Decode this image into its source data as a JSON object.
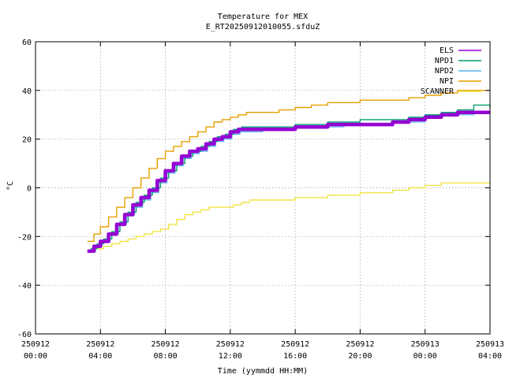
{
  "chart_data": {
    "type": "line",
    "title": "Temperature for MEX",
    "subtitle": "E_RT20250912010055.sfduZ",
    "xlabel": "Time (yymmdd HH:MM)",
    "ylabel": "°C",
    "xlim": [
      "250912 00:00",
      "250913 04:00"
    ],
    "ylim": [
      -60,
      60
    ],
    "yticks": [
      -60,
      -40,
      -20,
      0,
      20,
      40,
      60
    ],
    "xticks": [
      {
        "hours": 0,
        "date": "250912",
        "time": "00:00"
      },
      {
        "hours": 4,
        "date": "250912",
        "time": "04:00"
      },
      {
        "hours": 8,
        "date": "250912",
        "time": "08:00"
      },
      {
        "hours": 12,
        "date": "250912",
        "time": "12:00"
      },
      {
        "hours": 16,
        "date": "250912",
        "time": "16:00"
      },
      {
        "hours": 20,
        "date": "250912",
        "time": "20:00"
      },
      {
        "hours": 24,
        "date": "250913",
        "time": "00:00"
      },
      {
        "hours": 28,
        "date": "250913",
        "time": "04:00"
      }
    ],
    "grid": true,
    "legend_position": "top-right",
    "series": [
      {
        "name": "ELS",
        "color": "#9400d3",
        "x": [
          3.2,
          3.6,
          4.0,
          4.5,
          5.0,
          5.5,
          6.0,
          6.5,
          7.0,
          7.5,
          8.0,
          8.5,
          9.0,
          9.5,
          10.0,
          10.5,
          11.0,
          11.5,
          12.0,
          12.5,
          13.0,
          14.0,
          15.0,
          16.0,
          17.0,
          18.0,
          19.0,
          20.0,
          21.0,
          22.0,
          23.0,
          24.0,
          25.0,
          26.0,
          27.0,
          28.0
        ],
        "y": [
          -26,
          -24,
          -22,
          -19,
          -15,
          -11,
          -7,
          -4,
          -1,
          3,
          7,
          10,
          13,
          15,
          16,
          18,
          20,
          21,
          23,
          24,
          24,
          24,
          24,
          25,
          25,
          26,
          26,
          26,
          26,
          27,
          28,
          29,
          30,
          31,
          31,
          31
        ]
      },
      {
        "name": "NPD1",
        "color": "#009e73",
        "x": [
          3.4,
          3.8,
          4.2,
          4.7,
          5.2,
          5.7,
          6.2,
          6.7,
          7.2,
          7.7,
          8.2,
          8.7,
          9.2,
          9.7,
          10.2,
          10.7,
          11.2,
          11.7,
          12.2,
          12.7,
          13.2,
          14.0,
          15.0,
          16.0,
          17.0,
          18.0,
          19.0,
          20.0,
          21.0,
          22.0,
          23.0,
          24.0,
          25.0,
          26.0,
          27.0,
          28.0
        ],
        "y": [
          -25,
          -23,
          -21,
          -18,
          -14,
          -10,
          -6,
          -3,
          0,
          4,
          7,
          10,
          13,
          15,
          17,
          19,
          21,
          22,
          24,
          25,
          25,
          25,
          25,
          26,
          26,
          27,
          27,
          28,
          28,
          28,
          29,
          30,
          31,
          32,
          34,
          33
        ]
      },
      {
        "name": "NPD2",
        "color": "#56b4e9",
        "x": [
          3.3,
          3.7,
          4.1,
          4.6,
          5.1,
          5.6,
          6.1,
          6.6,
          7.1,
          7.6,
          8.1,
          8.6,
          9.1,
          9.6,
          10.1,
          10.6,
          11.1,
          11.6,
          12.1,
          12.6,
          13.1,
          14.0,
          15.0,
          16.0,
          17.0,
          18.0,
          19.0,
          20.0,
          21.0,
          22.0,
          23.0,
          24.0,
          25.0,
          26.0,
          27.0,
          28.0
        ],
        "y": [
          -26,
          -24,
          -22,
          -19,
          -15,
          -11,
          -8,
          -5,
          -2,
          2,
          6,
          9,
          12,
          14,
          15,
          17,
          19,
          20,
          22,
          23,
          23,
          24,
          24,
          25,
          25,
          25,
          26,
          26,
          26,
          27,
          27,
          29,
          30,
          30,
          31,
          31
        ]
      },
      {
        "name": "NPI",
        "color": "#e69f00",
        "x": [
          3.2,
          3.6,
          4.0,
          4.5,
          5.0,
          5.5,
          6.0,
          6.5,
          7.0,
          7.5,
          8.0,
          8.5,
          9.0,
          9.5,
          10.0,
          10.5,
          11.0,
          11.5,
          12.0,
          12.5,
          13.0,
          14.0,
          15.0,
          16.0,
          17.0,
          18.0,
          19.0,
          20.0,
          21.0,
          22.0,
          23.0,
          24.0,
          25.0,
          26.0,
          27.0,
          28.0
        ],
        "y": [
          -22,
          -19,
          -16,
          -12,
          -8,
          -4,
          0,
          4,
          8,
          12,
          15,
          17,
          19,
          21,
          23,
          25,
          27,
          28,
          29,
          30,
          31,
          31,
          32,
          33,
          34,
          35,
          35,
          36,
          36,
          36,
          37,
          38,
          39,
          40,
          40,
          40
        ]
      },
      {
        "name": "SCANNER",
        "color": "#f0e442",
        "x": [
          3.2,
          3.7,
          4.2,
          4.7,
          5.2,
          5.7,
          6.2,
          6.7,
          7.2,
          7.7,
          8.2,
          8.7,
          9.2,
          9.7,
          10.2,
          10.7,
          11.2,
          11.7,
          12.2,
          12.7,
          13.2,
          14.0,
          15.0,
          16.0,
          17.0,
          18.0,
          19.0,
          20.0,
          21.0,
          22.0,
          23.0,
          24.0,
          25.0,
          26.0,
          27.0,
          28.0
        ],
        "y": [
          -26,
          -25,
          -24,
          -23,
          -22,
          -21,
          -20,
          -19,
          -18,
          -17,
          -15,
          -13,
          -11,
          -10,
          -9,
          -8,
          -8,
          -8,
          -7,
          -6,
          -5,
          -5,
          -5,
          -4,
          -4,
          -3,
          -3,
          -2,
          -2,
          -1,
          0,
          1,
          2,
          2,
          2,
          2
        ]
      }
    ]
  }
}
